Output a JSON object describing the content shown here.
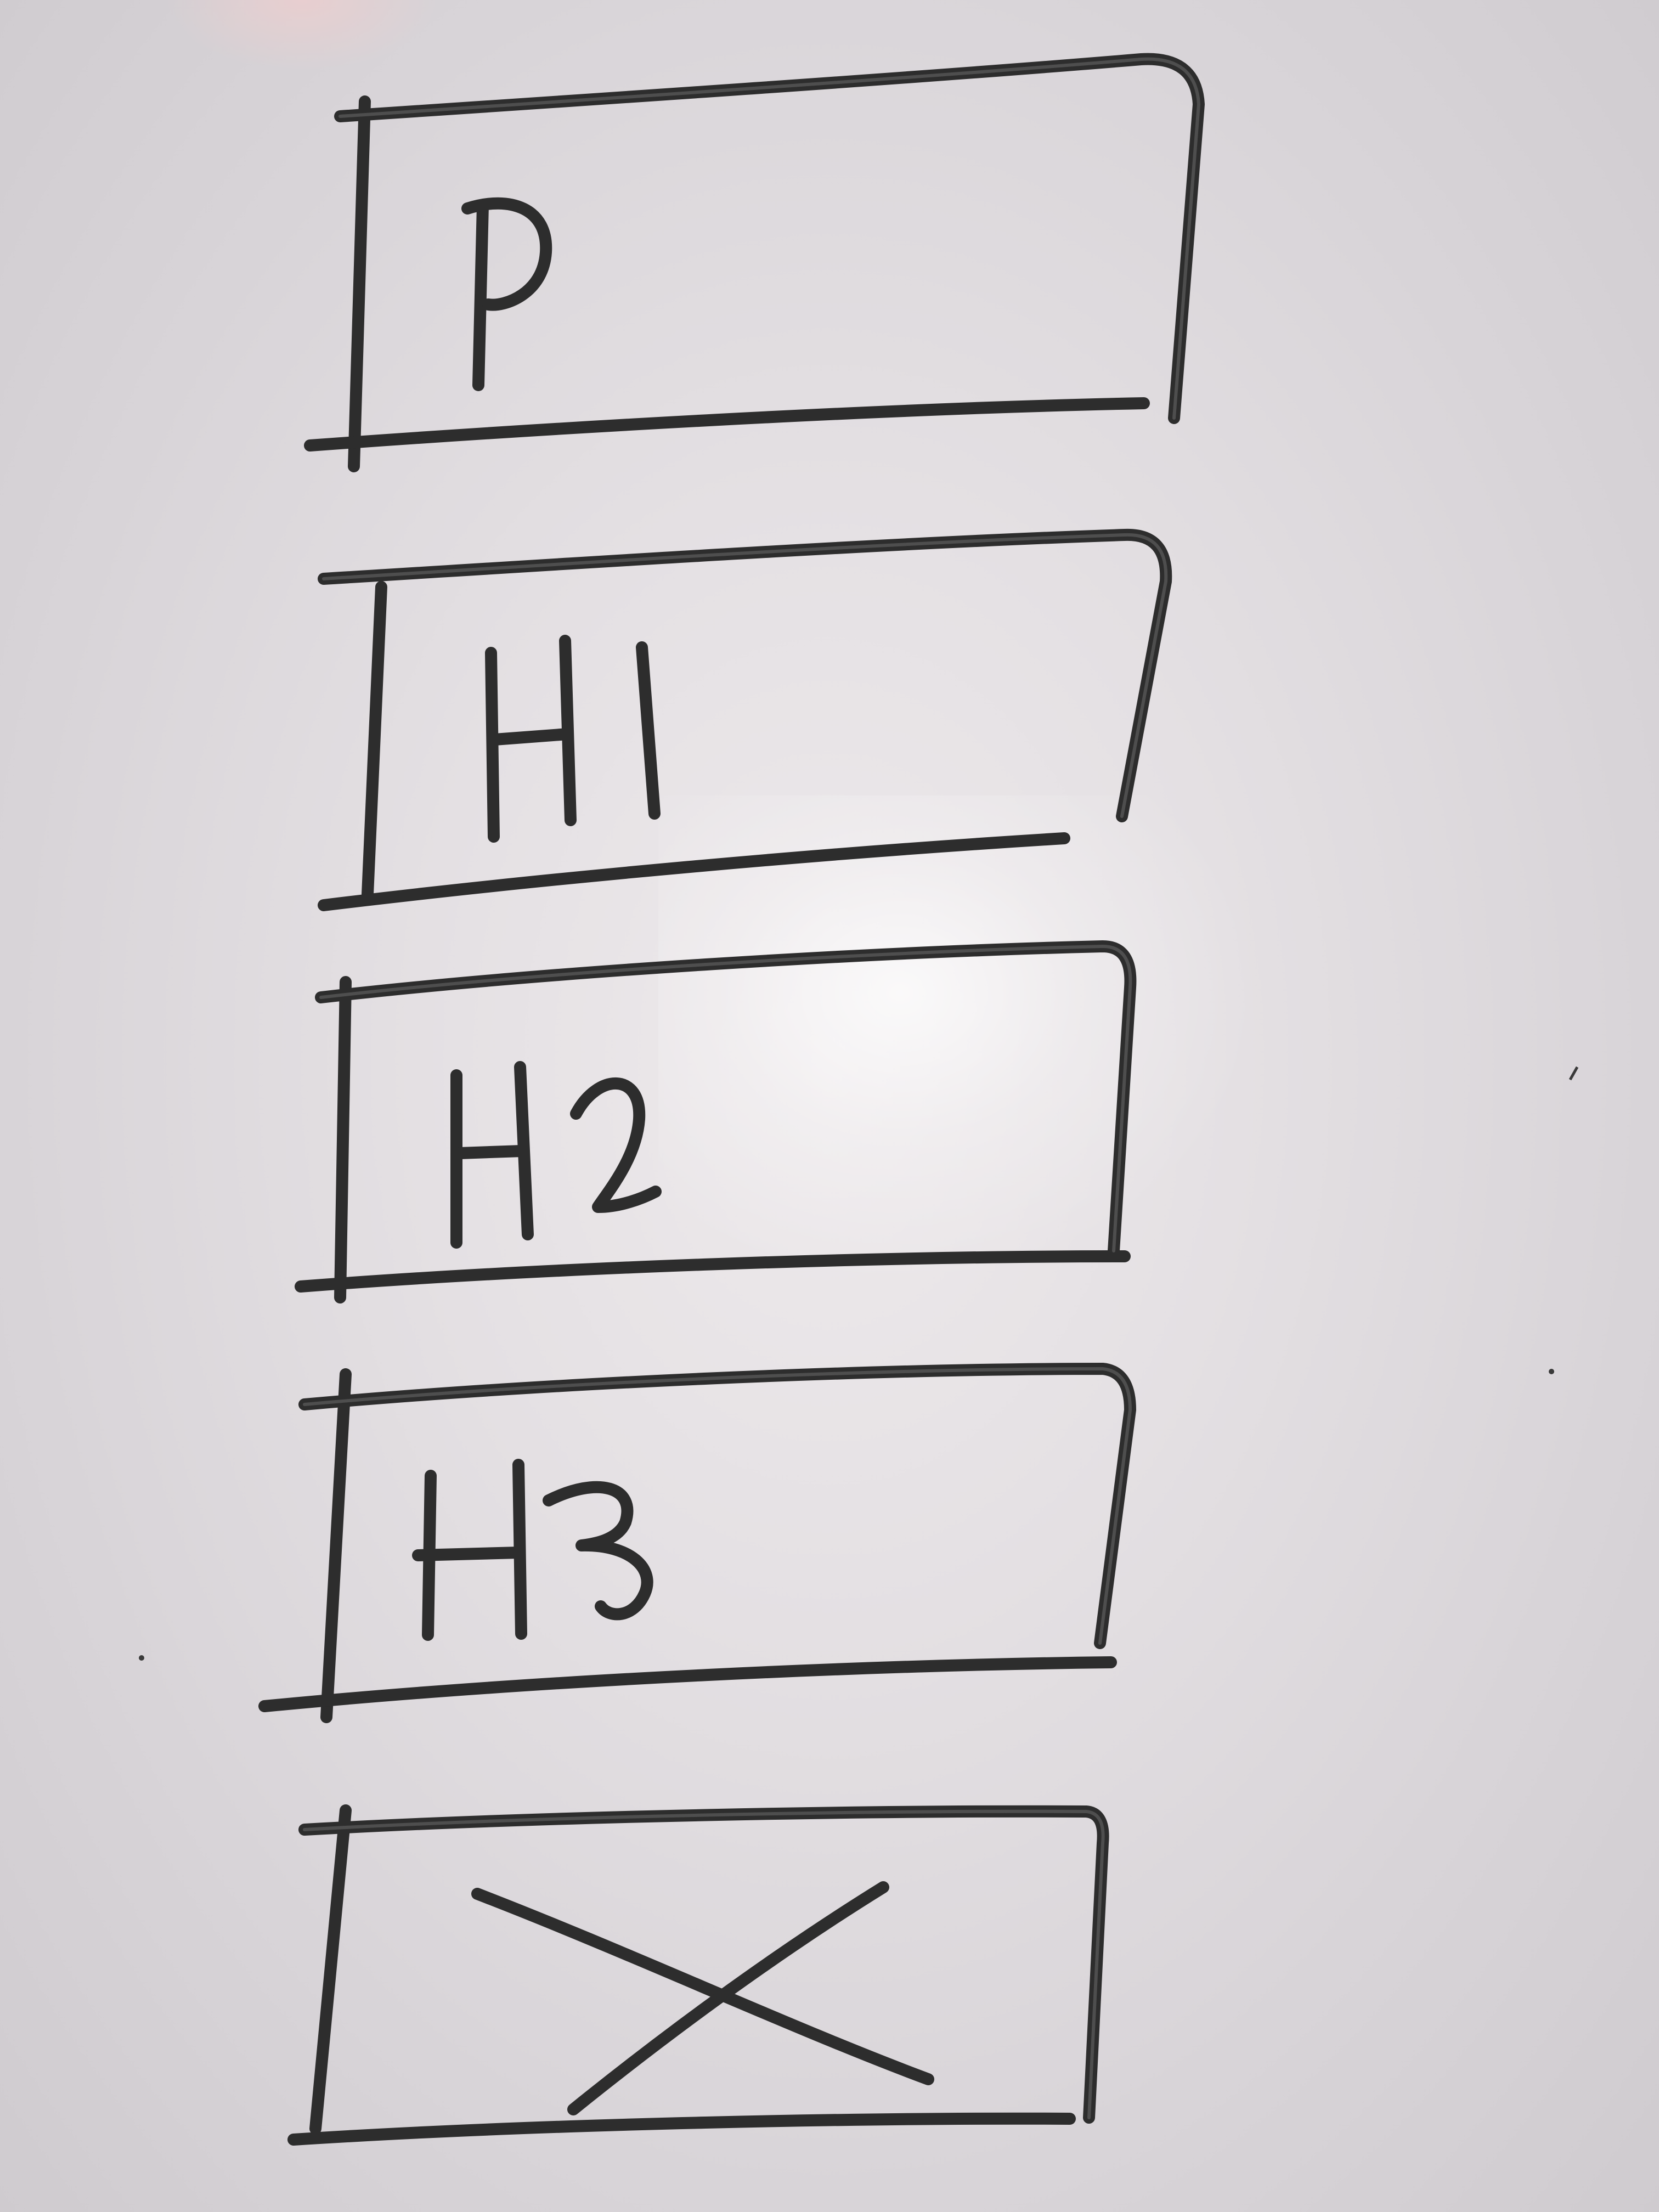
{
  "sketch": {
    "boxes": [
      {
        "label": "P"
      },
      {
        "label": "H1"
      },
      {
        "label": "H2"
      },
      {
        "label": "H3"
      },
      {
        "label": "",
        "icon": "cross-x-icon"
      }
    ]
  }
}
